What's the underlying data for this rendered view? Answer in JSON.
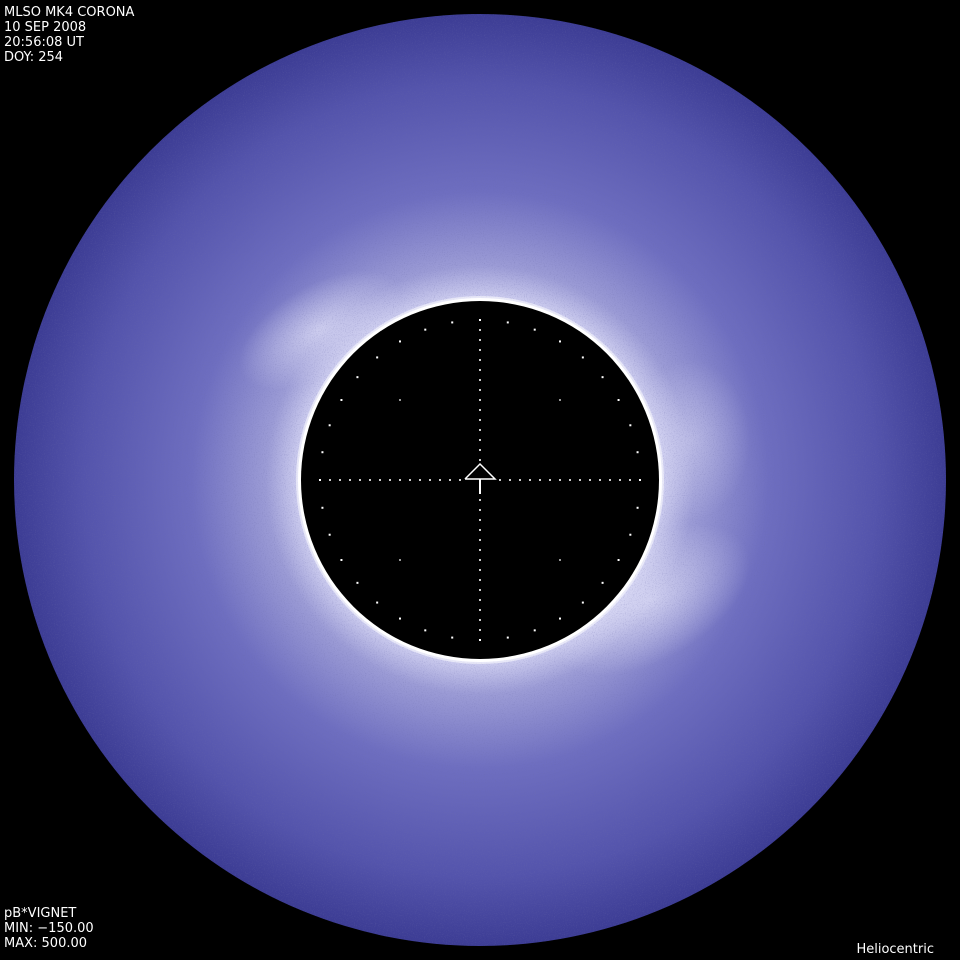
{
  "header": {
    "instrument": "MLSO MK4 CORONA",
    "date": "10 SEP 2008",
    "time": "20:56:08 UT",
    "doy": "DOY: 254"
  },
  "footer": {
    "product": "pB*VIGNET",
    "min": "MIN: −150.00",
    "max": "MAX: 500.00",
    "coords": "Heliocentric"
  },
  "colors": {
    "background": "#000000",
    "corona_outer": "#4c4ca6",
    "corona_inner": "#c8c8ee",
    "limb": "#ffffff",
    "occulter": "#000000"
  },
  "icons": {
    "center": "solar-north-arrow-icon"
  }
}
